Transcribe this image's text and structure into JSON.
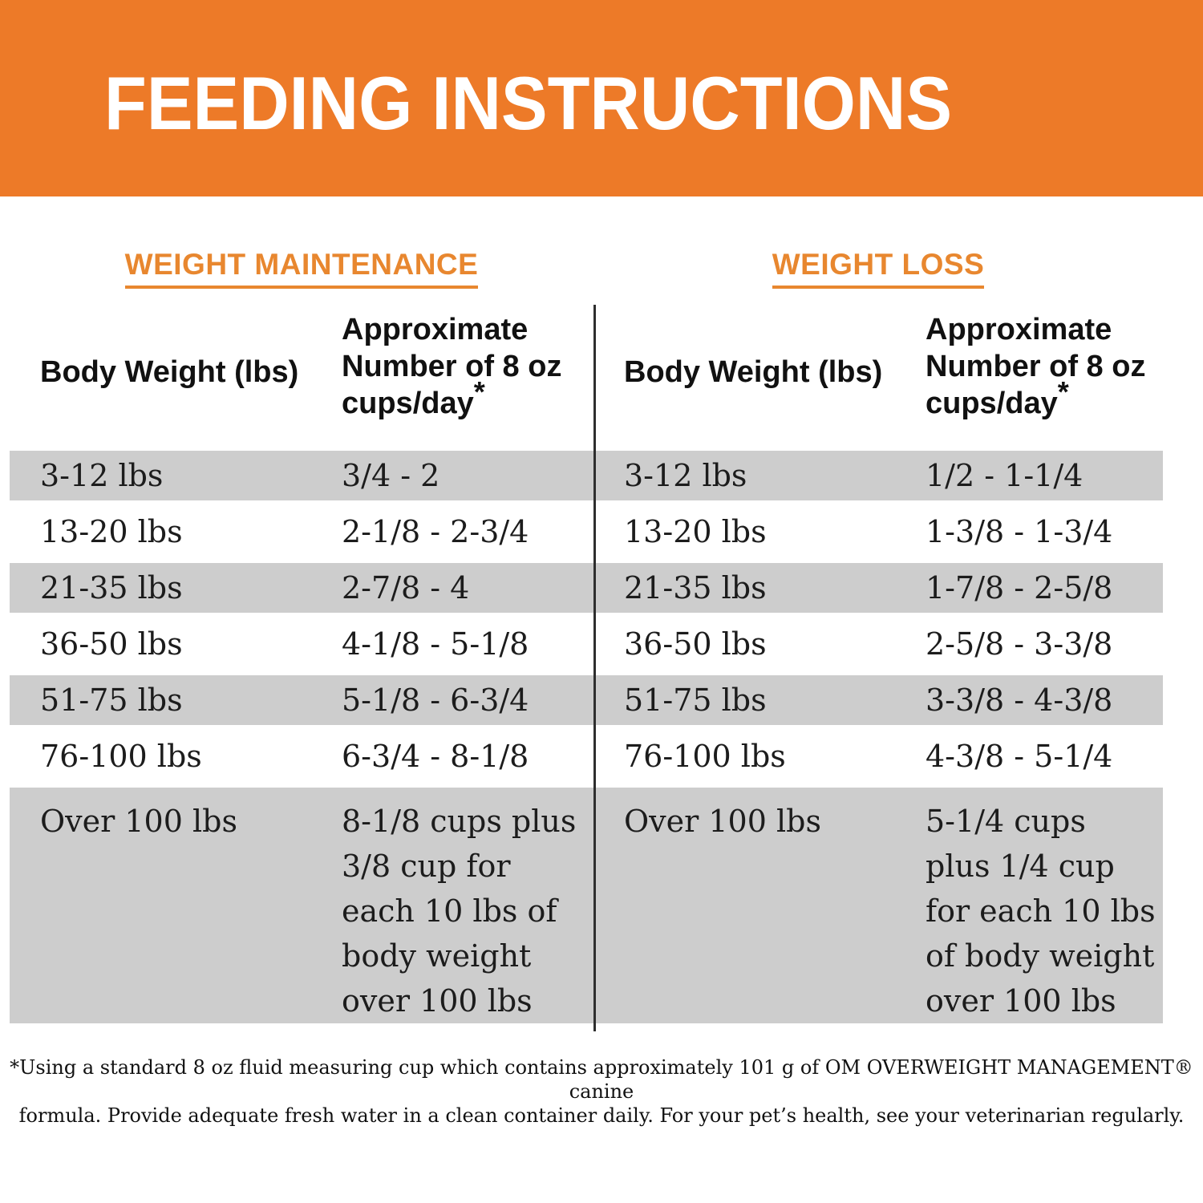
{
  "title": "FEEDING INSTRUCTIONS",
  "colors": {
    "band_orange": "#ED7A28",
    "heading_orange": "#E8872F",
    "row_gray": "#CDCDCD",
    "divider_dark": "#2e2e2e"
  },
  "sections": [
    {
      "heading": "WEIGHT MAINTENANCE",
      "columns": {
        "body_weight": "Body Weight (lbs)",
        "cups_lines": [
          "Approximate",
          "Number of 8 oz",
          "cups/day"
        ],
        "footnote_marker": "*"
      },
      "rows": [
        {
          "weight": "3-12 lbs",
          "cups": "3/4 - 2"
        },
        {
          "weight": "13-20 lbs",
          "cups": "2-1/8 - 2-3/4"
        },
        {
          "weight": "21-35 lbs",
          "cups": "2-7/8 - 4"
        },
        {
          "weight": "36-50 lbs",
          "cups": "4-1/8 - 5-1/8"
        },
        {
          "weight": "51-75 lbs",
          "cups": "5-1/8 - 6-3/4"
        },
        {
          "weight": "76-100 lbs",
          "cups": "6-3/4 - 8-1/8"
        },
        {
          "weight": "Over 100 lbs",
          "cups": "8-1/8 cups plus 3/8 cup for each 10 lbs of body weight over 100 lbs"
        }
      ]
    },
    {
      "heading": "WEIGHT LOSS",
      "columns": {
        "body_weight": "Body Weight (lbs)",
        "cups_lines": [
          "Approximate",
          "Number of 8 oz",
          "cups/day"
        ],
        "footnote_marker": "*"
      },
      "rows": [
        {
          "weight": "3-12 lbs",
          "cups": "1/2 - 1-1/4"
        },
        {
          "weight": "13-20 lbs",
          "cups": "1-3/8 - 1-3/4"
        },
        {
          "weight": "21-35 lbs",
          "cups": "1-7/8 - 2-5/8"
        },
        {
          "weight": "36-50 lbs",
          "cups": "2-5/8 - 3-3/8"
        },
        {
          "weight": "51-75 lbs",
          "cups": "3-3/8 - 4-3/8"
        },
        {
          "weight": "76-100 lbs",
          "cups": "4-3/8 - 5-1/4"
        },
        {
          "weight": "Over 100 lbs",
          "cups": "5-1/4 cups plus 1/4 cup for each 10 lbs of body weight over 100 lbs"
        }
      ]
    }
  ],
  "footnote": {
    "lines": [
      "*Using a standard 8 oz fluid measuring cup which contains approximately 101 g of OM OVERWEIGHT MANAGEMENT® canine",
      "formula. Provide adequate fresh water in a clean container daily. For your pet’s health, see your veterinarian regularly."
    ]
  }
}
